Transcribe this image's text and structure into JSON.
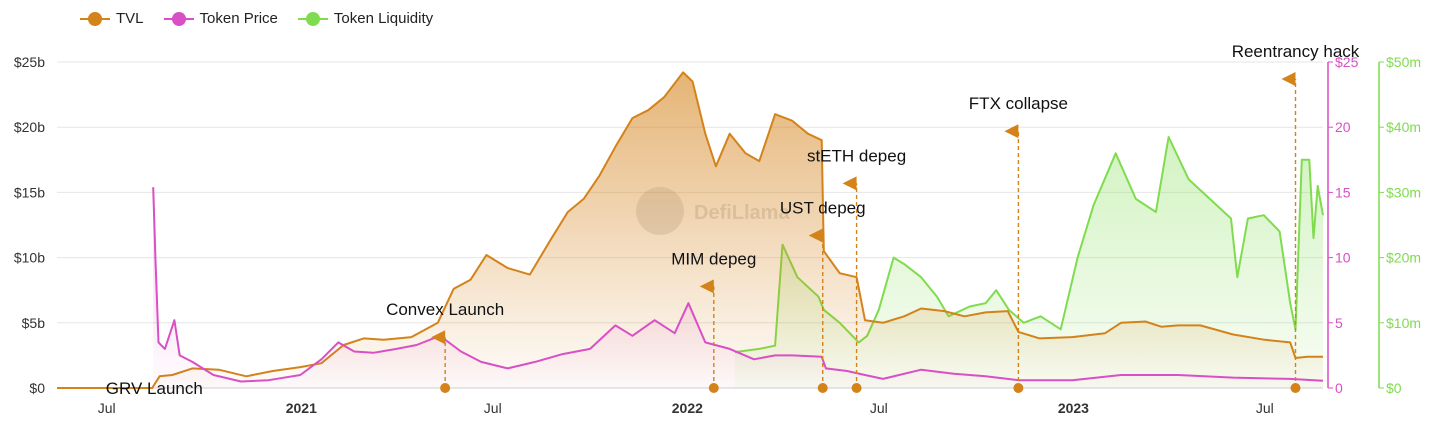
{
  "colors": {
    "tvl": "#d4821a",
    "price": "#d94fc5",
    "liquidity": "#7fdc4e",
    "grid": "#e6e6e6",
    "event": "#d4821a"
  },
  "watermark": "DefiLlama",
  "legend": [
    {
      "label": "TVL",
      "color": "#d4821a"
    },
    {
      "label": "Token Price",
      "color": "#d94fc5"
    },
    {
      "label": "Token Liquidity",
      "color": "#7fdc4e"
    }
  ],
  "chart_data": {
    "type": "area",
    "x_axis": {
      "range": [
        "2020-05-15",
        "2023-08-25"
      ],
      "ticks": [
        {
          "date": "2020-07-01",
          "label": "Jul",
          "bold": false
        },
        {
          "date": "2021-01-01",
          "label": "2021",
          "bold": true
        },
        {
          "date": "2021-07-01",
          "label": "Jul",
          "bold": false
        },
        {
          "date": "2022-01-01",
          "label": "2022",
          "bold": true
        },
        {
          "date": "2022-07-01",
          "label": "Jul",
          "bold": false
        },
        {
          "date": "2023-01-01",
          "label": "2023",
          "bold": true
        },
        {
          "date": "2023-07-01",
          "label": "Jul",
          "bold": false
        }
      ]
    },
    "y_axes": [
      {
        "id": "tvl",
        "side": "left",
        "range": [
          0,
          25
        ],
        "ticks": [
          "$0",
          "$5b",
          "$10b",
          "$15b",
          "$20b",
          "$25b"
        ]
      },
      {
        "id": "price",
        "side": "right",
        "range": [
          0,
          25
        ],
        "ticks": [
          "0",
          "5",
          "10",
          "15",
          "20",
          "$25"
        ]
      },
      {
        "id": "liquidity",
        "side": "right",
        "range": [
          0,
          50
        ],
        "ticks": [
          "$0",
          "$10m",
          "$20m",
          "$30m",
          "$40m",
          "$50m"
        ]
      }
    ],
    "grid": true,
    "legend_position": "top-left",
    "series": [
      {
        "name": "TVL",
        "axis": "tvl",
        "points": [
          [
            "2020-05-15",
            0
          ],
          [
            "2020-08-13",
            0
          ],
          [
            "2020-08-20",
            0.9
          ],
          [
            "2020-09-01",
            1.0
          ],
          [
            "2020-09-20",
            1.5
          ],
          [
            "2020-10-15",
            1.4
          ],
          [
            "2020-11-10",
            0.9
          ],
          [
            "2020-12-05",
            1.3
          ],
          [
            "2020-12-31",
            1.6
          ],
          [
            "2021-01-20",
            1.9
          ],
          [
            "2021-02-10",
            3.3
          ],
          [
            "2021-03-01",
            3.8
          ],
          [
            "2021-03-20",
            3.7
          ],
          [
            "2021-04-15",
            3.9
          ],
          [
            "2021-05-10",
            5.0
          ],
          [
            "2021-05-25",
            7.6
          ],
          [
            "2021-06-10",
            8.3
          ],
          [
            "2021-06-25",
            10.2
          ],
          [
            "2021-07-15",
            9.2
          ],
          [
            "2021-08-05",
            8.7
          ],
          [
            "2021-08-25",
            11.4
          ],
          [
            "2021-09-10",
            13.5
          ],
          [
            "2021-09-25",
            14.5
          ],
          [
            "2021-10-10",
            16.3
          ],
          [
            "2021-10-25",
            18.5
          ],
          [
            "2021-11-10",
            20.7
          ],
          [
            "2021-11-25",
            21.3
          ],
          [
            "2021-12-10",
            22.3
          ],
          [
            "2021-12-28",
            24.2
          ],
          [
            "2022-01-06",
            23.5
          ],
          [
            "2022-01-18",
            19.5
          ],
          [
            "2022-01-28",
            17.0
          ],
          [
            "2022-02-10",
            19.5
          ],
          [
            "2022-02-25",
            18.0
          ],
          [
            "2022-03-10",
            17.4
          ],
          [
            "2022-03-25",
            21.0
          ],
          [
            "2022-04-10",
            20.5
          ],
          [
            "2022-04-25",
            19.5
          ],
          [
            "2022-05-08",
            19.0
          ],
          [
            "2022-05-10",
            10.5
          ],
          [
            "2022-05-25",
            8.8
          ],
          [
            "2022-06-10",
            8.5
          ],
          [
            "2022-06-18",
            5.2
          ],
          [
            "2022-07-05",
            5.0
          ],
          [
            "2022-07-25",
            5.5
          ],
          [
            "2022-08-10",
            6.1
          ],
          [
            "2022-09-01",
            5.9
          ],
          [
            "2022-09-20",
            5.5
          ],
          [
            "2022-10-10",
            5.8
          ],
          [
            "2022-10-31",
            5.9
          ],
          [
            "2022-11-10",
            4.3
          ],
          [
            "2022-11-30",
            3.8
          ],
          [
            "2022-12-31",
            3.9
          ],
          [
            "2023-01-31",
            4.2
          ],
          [
            "2023-02-15",
            5.0
          ],
          [
            "2023-03-10",
            5.1
          ],
          [
            "2023-03-25",
            4.7
          ],
          [
            "2023-04-10",
            4.8
          ],
          [
            "2023-05-01",
            4.8
          ],
          [
            "2023-06-01",
            4.1
          ],
          [
            "2023-07-01",
            3.7
          ],
          [
            "2023-07-25",
            3.5
          ],
          [
            "2023-07-30",
            2.3
          ],
          [
            "2023-08-10",
            2.4
          ],
          [
            "2023-08-25",
            2.4
          ]
        ]
      },
      {
        "name": "Token Price",
        "axis": "price",
        "points": [
          [
            "2020-08-14",
            15.4
          ],
          [
            "2020-08-16",
            10.0
          ],
          [
            "2020-08-19",
            3.5
          ],
          [
            "2020-08-25",
            3.0
          ],
          [
            "2020-09-03",
            5.2
          ],
          [
            "2020-09-08",
            2.5
          ],
          [
            "2020-09-20",
            2.0
          ],
          [
            "2020-10-10",
            1.0
          ],
          [
            "2020-11-05",
            0.5
          ],
          [
            "2020-12-01",
            0.6
          ],
          [
            "2020-12-31",
            1.0
          ],
          [
            "2021-01-20",
            2.2
          ],
          [
            "2021-02-05",
            3.5
          ],
          [
            "2021-02-20",
            2.8
          ],
          [
            "2021-03-10",
            2.7
          ],
          [
            "2021-04-01",
            3.0
          ],
          [
            "2021-04-20",
            3.3
          ],
          [
            "2021-05-12",
            4.0
          ],
          [
            "2021-06-01",
            2.8
          ],
          [
            "2021-06-20",
            2.0
          ],
          [
            "2021-07-15",
            1.5
          ],
          [
            "2021-08-10",
            2.0
          ],
          [
            "2021-09-05",
            2.6
          ],
          [
            "2021-10-01",
            3.0
          ],
          [
            "2021-10-25",
            4.8
          ],
          [
            "2021-11-10",
            4.0
          ],
          [
            "2021-12-01",
            5.2
          ],
          [
            "2021-12-20",
            4.2
          ],
          [
            "2022-01-02",
            6.5
          ],
          [
            "2022-01-18",
            3.5
          ],
          [
            "2022-02-10",
            3.0
          ],
          [
            "2022-03-05",
            2.2
          ],
          [
            "2022-03-25",
            2.5
          ],
          [
            "2022-04-10",
            2.5
          ],
          [
            "2022-05-08",
            2.4
          ],
          [
            "2022-05-12",
            1.5
          ],
          [
            "2022-06-01",
            1.3
          ],
          [
            "2022-06-18",
            1.0
          ],
          [
            "2022-07-05",
            0.7
          ],
          [
            "2022-08-10",
            1.4
          ],
          [
            "2022-09-10",
            1.1
          ],
          [
            "2022-10-10",
            0.9
          ],
          [
            "2022-11-10",
            0.6
          ],
          [
            "2022-12-31",
            0.6
          ],
          [
            "2023-02-15",
            1.0
          ],
          [
            "2023-04-10",
            1.0
          ],
          [
            "2023-06-01",
            0.8
          ],
          [
            "2023-07-25",
            0.7
          ],
          [
            "2023-08-25",
            0.55
          ]
        ]
      },
      {
        "name": "Token Liquidity",
        "axis": "liquidity",
        "points": [
          [
            "2022-02-15",
            5.5
          ],
          [
            "2022-03-10",
            6.0
          ],
          [
            "2022-03-25",
            6.5
          ],
          [
            "2022-04-01",
            22.0
          ],
          [
            "2022-04-15",
            17.0
          ],
          [
            "2022-05-05",
            14.0
          ],
          [
            "2022-05-10",
            12.0
          ],
          [
            "2022-05-25",
            10.0
          ],
          [
            "2022-06-12",
            7.0
          ],
          [
            "2022-06-20",
            8.0
          ],
          [
            "2022-07-01",
            12.0
          ],
          [
            "2022-07-15",
            20.0
          ],
          [
            "2022-07-25",
            19.0
          ],
          [
            "2022-08-10",
            17.0
          ],
          [
            "2022-08-25",
            14.0
          ],
          [
            "2022-09-05",
            11.0
          ],
          [
            "2022-09-25",
            12.5
          ],
          [
            "2022-10-10",
            13.0
          ],
          [
            "2022-10-20",
            15.0
          ],
          [
            "2022-11-01",
            12.0
          ],
          [
            "2022-11-15",
            10.0
          ],
          [
            "2022-12-01",
            11.0
          ],
          [
            "2022-12-20",
            9.0
          ],
          [
            "2023-01-05",
            20.0
          ],
          [
            "2023-01-20",
            28.0
          ],
          [
            "2023-02-10",
            36.0
          ],
          [
            "2023-03-01",
            29.0
          ],
          [
            "2023-03-20",
            27.0
          ],
          [
            "2023-04-01",
            38.5
          ],
          [
            "2023-04-20",
            32.0
          ],
          [
            "2023-05-10",
            29.0
          ],
          [
            "2023-05-30",
            26.0
          ],
          [
            "2023-06-05",
            17.0
          ],
          [
            "2023-06-15",
            26.0
          ],
          [
            "2023-06-30",
            26.5
          ],
          [
            "2023-07-15",
            24.0
          ],
          [
            "2023-07-25",
            13.0
          ],
          [
            "2023-07-30",
            9.0
          ],
          [
            "2023-08-05",
            35.0
          ],
          [
            "2023-08-12",
            35.0
          ],
          [
            "2023-08-16",
            23.0
          ],
          [
            "2023-08-20",
            31.0
          ],
          [
            "2023-08-25",
            26.5
          ]
        ]
      }
    ],
    "events": [
      {
        "label": "GRV Launch",
        "date": "2020-08-15",
        "level": 0
      },
      {
        "label": "Convex Launch",
        "date": "2021-05-17",
        "level": 4.2
      },
      {
        "label": "MIM depeg",
        "date": "2022-01-26",
        "level": 8.1
      },
      {
        "label": "UST depeg",
        "date": "2022-05-09",
        "level": 12.0
      },
      {
        "label": "stETH depeg",
        "date": "2022-06-10",
        "level": 16.0
      },
      {
        "label": "FTX collapse",
        "date": "2022-11-10",
        "level": 20.0
      },
      {
        "label": "Reentrancy hack",
        "date": "2023-07-30",
        "level": 24.0
      }
    ]
  }
}
